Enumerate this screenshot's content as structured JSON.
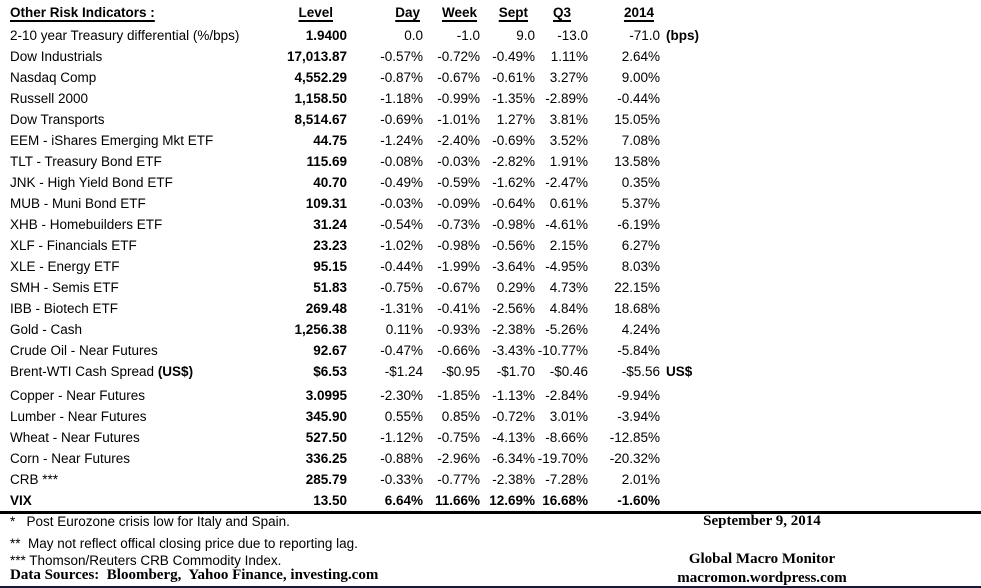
{
  "header": {
    "title": "Other Risk Indicators :",
    "columns": [
      "Level",
      "Day",
      "Week",
      "Sept",
      "Q3",
      "2014"
    ]
  },
  "rows": [
    {
      "label": "2-10 year Treasury differential (%/bps)",
      "level": "1.9400",
      "day": "0.0",
      "week": "-1.0",
      "sept": "9.0",
      "q3": "-13.0",
      "y2014": "-71.0",
      "suffix": "(bps)"
    },
    {
      "label": "Dow Industrials",
      "level": "17,013.87",
      "day": "-0.57%",
      "week": "-0.72%",
      "sept": "-0.49%",
      "q3": "1.11%",
      "y2014": "2.64%"
    },
    {
      "label": "Nasdaq Comp",
      "level": "4,552.29",
      "day": "-0.87%",
      "week": "-0.67%",
      "sept": "-0.61%",
      "q3": "3.27%",
      "y2014": "9.00%"
    },
    {
      "label": "Russell 2000",
      "level": "1,158.50",
      "day": "-1.18%",
      "week": "-0.99%",
      "sept": "-1.35%",
      "q3": "-2.89%",
      "y2014": "-0.44%"
    },
    {
      "label": "Dow Transports",
      "level": "8,514.67",
      "day": "-0.69%",
      "week": "-1.01%",
      "sept": "1.27%",
      "q3": "3.81%",
      "y2014": "15.05%"
    },
    {
      "label": "EEM - iShares Emerging Mkt ETF",
      "level": "44.75",
      "day": "-1.24%",
      "week": "-2.40%",
      "sept": "-0.69%",
      "q3": "3.52%",
      "y2014": "7.08%"
    },
    {
      "label": "TLT - Treasury Bond ETF",
      "level": "115.69",
      "day": "-0.08%",
      "week": "-0.03%",
      "sept": "-2.82%",
      "q3": "1.91%",
      "y2014": "13.58%"
    },
    {
      "label": "JNK - High Yield Bond ETF",
      "level": "40.70",
      "day": "-0.49%",
      "week": "-0.59%",
      "sept": "-1.62%",
      "q3": "-2.47%",
      "y2014": "0.35%"
    },
    {
      "label": "MUB - Muni Bond ETF",
      "level": "109.31",
      "day": "-0.03%",
      "week": "-0.09%",
      "sept": "-0.64%",
      "q3": "0.61%",
      "y2014": "5.37%"
    },
    {
      "label": "XHB - Homebuilders ETF",
      "level": "31.24",
      "day": "-0.54%",
      "week": "-0.73%",
      "sept": "-0.98%",
      "q3": "-4.61%",
      "y2014": "-6.19%"
    },
    {
      "label": "XLF - Financials ETF",
      "level": "23.23",
      "day": "-1.02%",
      "week": "-0.98%",
      "sept": "-0.56%",
      "q3": "2.15%",
      "y2014": "6.27%"
    },
    {
      "label": "XLE - Energy ETF",
      "level": "95.15",
      "day": "-0.44%",
      "week": "-1.99%",
      "sept": "-3.64%",
      "q3": "-4.95%",
      "y2014": "8.03%"
    },
    {
      "label": "SMH - Semis ETF",
      "level": "51.83",
      "day": "-0.75%",
      "week": "-0.67%",
      "sept": "0.29%",
      "q3": "4.73%",
      "y2014": "22.15%"
    },
    {
      "label": "IBB - Biotech ETF",
      "level": "269.48",
      "day": "-1.31%",
      "week": "-0.41%",
      "sept": "-2.56%",
      "q3": "4.84%",
      "y2014": "18.68%"
    },
    {
      "label": "Gold - Cash",
      "level": "1,256.38",
      "day": "0.11%",
      "week": "-0.93%",
      "sept": "-2.38%",
      "q3": "-5.26%",
      "y2014": "4.24%"
    },
    {
      "label": "Crude Oil - Near Futures",
      "level": "92.67",
      "day": "-0.47%",
      "week": "-0.66%",
      "sept": "-3.43%",
      "q3": "-10.77%",
      "y2014": "-5.84%"
    },
    {
      "label": "Brent-WTI Cash Spread ",
      "label_bold": "(US$)",
      "level": "$6.53",
      "day": "-$1.24",
      "week": "-$0.95",
      "sept": "-$1.70",
      "q3": "-$0.46",
      "y2014": "-$5.56",
      "suffix": "US$",
      "flags": true
    },
    {
      "label": "Copper - Near Futures",
      "level": "3.0995",
      "day": "-2.30%",
      "week": "-1.85%",
      "sept": "-1.13%",
      "q3": "-2.84%",
      "y2014": "-9.94%",
      "gap_before": true
    },
    {
      "label": "Lumber - Near Futures",
      "level": "345.90",
      "day": "0.55%",
      "week": "0.85%",
      "sept": "-0.72%",
      "q3": "3.01%",
      "y2014": "-3.94%"
    },
    {
      "label": "Wheat - Near Futures",
      "level": "527.50",
      "day": "-1.12%",
      "week": "-0.75%",
      "sept": "-4.13%",
      "q3": "-8.66%",
      "y2014": "-12.85%"
    },
    {
      "label": "Corn - Near Futures",
      "level": "336.25",
      "day": "-0.88%",
      "week": "-2.96%",
      "sept": "-6.34%",
      "q3": "-19.70%",
      "y2014": "-20.32%"
    },
    {
      "label": "CRB ***",
      "level": "285.79",
      "day": "-0.33%",
      "week": "-0.77%",
      "sept": "-2.38%",
      "q3": "-7.28%",
      "y2014": "2.01%"
    },
    {
      "label": "VIX",
      "level": "13.50",
      "day": "6.64%",
      "week": "11.66%",
      "sept": "12.69%",
      "q3": "16.68%",
      "y2014": "-1.60%",
      "bold": true
    }
  ],
  "footnotes": [
    "*   Post Eurozone crisis low for Italy and Spain.",
    "**  May not reflect offical closing price due to reporting lag.",
    "*** Thomson/Reuters CRB Commodity Index."
  ],
  "data_sources": "Data Sources:  Bloomberg,  Yahoo Finance, investing.com",
  "footer_right": {
    "date": "September 9, 2014",
    "brand": "Global Macro Monitor",
    "site": "macromon.wordpress.com"
  },
  "colors": {
    "flag_green": "#2f9e41",
    "bottom_rule": "#16163f"
  }
}
